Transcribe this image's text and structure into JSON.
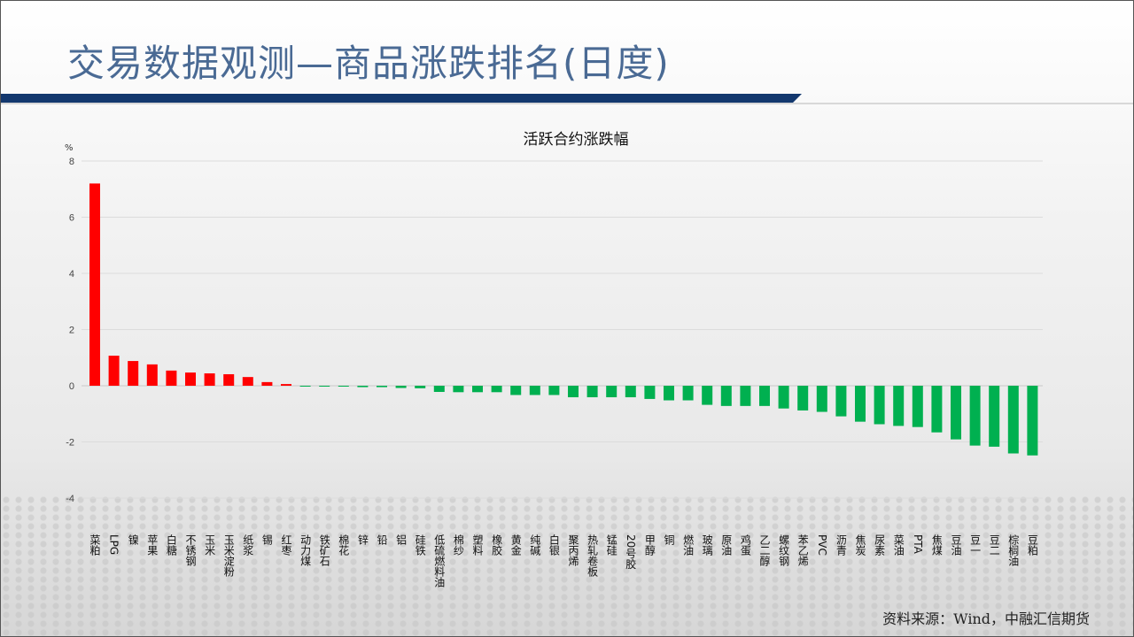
{
  "page_title": "交易数据观测—商品涨跌排名(日度)",
  "source": "资料来源：Wind，中融汇信期货",
  "colors": {
    "up": "#ff0000",
    "down": "#00b050",
    "title": "#4a6a94",
    "band": "#13386e"
  },
  "chart_data": {
    "type": "bar",
    "title": "活跃合约涨跌幅",
    "ylabel": "%",
    "xlabel": "",
    "ylim": [
      -4,
      8
    ],
    "yticks": [
      -4,
      -2,
      0,
      2,
      4,
      6,
      8
    ],
    "grid": true,
    "categories": [
      "菜粕",
      "LPG",
      "镍",
      "苹果",
      "白糖",
      "不锈钢",
      "玉米",
      "玉米淀粉",
      "纸浆",
      "锡",
      "红枣",
      "动力煤",
      "铁矿石",
      "棉花",
      "锌",
      "铅",
      "铝",
      "硅铁",
      "低硫燃料油",
      "棉纱",
      "塑料",
      "橡胶",
      "黄金",
      "纯碱",
      "白银",
      "聚丙烯",
      "热轧卷板",
      "锰硅",
      "20号胶",
      "甲醇",
      "铜",
      "燃油",
      "玻璃",
      "原油",
      "鸡蛋",
      "乙二醇",
      "螺纹钢",
      "苯乙烯",
      "PVC",
      "沥青",
      "焦炭",
      "尿素",
      "菜油",
      "PTA",
      "焦煤",
      "豆油",
      "豆一",
      "豆二",
      "棕榈油",
      "豆粕"
    ],
    "values": [
      7.2,
      1.07,
      0.88,
      0.76,
      0.54,
      0.47,
      0.44,
      0.41,
      0.31,
      0.13,
      0.06,
      -0.01,
      -0.03,
      -0.03,
      -0.05,
      -0.05,
      -0.08,
      -0.09,
      -0.22,
      -0.23,
      -0.23,
      -0.23,
      -0.33,
      -0.33,
      -0.33,
      -0.41,
      -0.41,
      -0.41,
      -0.41,
      -0.47,
      -0.52,
      -0.52,
      -0.68,
      -0.72,
      -0.72,
      -0.72,
      -0.81,
      -0.88,
      -0.93,
      -1.09,
      -1.28,
      -1.37,
      -1.43,
      -1.47,
      -1.66,
      -1.91,
      -2.13,
      -2.17,
      -2.41,
      -2.48
    ]
  }
}
